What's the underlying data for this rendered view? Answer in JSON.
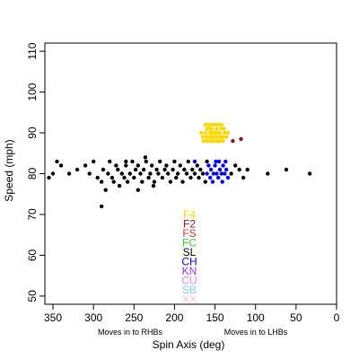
{
  "chart_data": {
    "type": "scatter",
    "xlabel": "Spin Axis (deg)",
    "ylabel": "Speed (mph)",
    "xlim": [
      360,
      0
    ],
    "ylim": [
      48,
      112
    ],
    "x_ticks": [
      350,
      300,
      250,
      200,
      150,
      100,
      50,
      0
    ],
    "y_ticks": [
      50,
      60,
      70,
      80,
      90,
      100,
      110
    ],
    "x_tick_labels": [
      "350",
      "300",
      "250",
      "200",
      "150",
      "100",
      "50",
      "0"
    ],
    "y_tick_labels": [
      "50",
      "60",
      "70",
      "80",
      "90",
      "100",
      "110"
    ],
    "x_sublabels": {
      "left": "Moves in to RHBs",
      "right": "Moves in to LHBs"
    },
    "grid": false,
    "legend_position": "center-bottom",
    "legend": [
      {
        "label": "F4",
        "color": "#FFD700"
      },
      {
        "label": "F2",
        "color": "#8B1A1A"
      },
      {
        "label": "FS",
        "color": "#CD3333"
      },
      {
        "label": "FC",
        "color": "#32CD32"
      },
      {
        "label": "SL",
        "color": "#000000"
      },
      {
        "label": "CH",
        "color": "#0000FF"
      },
      {
        "label": "KN",
        "color": "#9B30FF"
      },
      {
        "label": "CU",
        "color": "#EE82EE"
      },
      {
        "label": "SB",
        "color": "#87CEEB"
      },
      {
        "label": "XX",
        "color": "#FFC0CB"
      }
    ],
    "series": [
      {
        "name": "F4",
        "color": "#FFD700",
        "points": [
          [
            162,
            90
          ],
          [
            160,
            91
          ],
          [
            158,
            89
          ],
          [
            156,
            90
          ],
          [
            154,
            91
          ],
          [
            152,
            89
          ],
          [
            150,
            90
          ],
          [
            148,
            91
          ],
          [
            146,
            89
          ],
          [
            144,
            90
          ],
          [
            142,
            91
          ],
          [
            140,
            89
          ],
          [
            165,
            89
          ],
          [
            167,
            90
          ],
          [
            164,
            88
          ],
          [
            160,
            88
          ],
          [
            156,
            88
          ],
          [
            152,
            88
          ],
          [
            148,
            88
          ],
          [
            144,
            88
          ],
          [
            140,
            88
          ],
          [
            138,
            90
          ],
          [
            136,
            89
          ],
          [
            134,
            90
          ],
          [
            158,
            92
          ],
          [
            154,
            92
          ],
          [
            150,
            92
          ],
          [
            146,
            92
          ],
          [
            142,
            92
          ],
          [
            162,
            92
          ],
          [
            150,
            89
          ],
          [
            153,
            90
          ],
          [
            157,
            91
          ],
          [
            145,
            90
          ],
          [
            149,
            90
          ],
          [
            161,
            89
          ],
          [
            139,
            91
          ],
          [
            143,
            89
          ],
          [
            147,
            88
          ],
          [
            155,
            89
          ]
        ]
      },
      {
        "name": "F2",
        "color": "#8B1A1A",
        "points": [
          [
            118,
            88.5
          ],
          [
            128,
            88
          ]
        ]
      },
      {
        "name": "CH",
        "color": "#0000FF",
        "points": [
          [
            175,
            83
          ],
          [
            155,
            81
          ],
          [
            152,
            80
          ],
          [
            150,
            82
          ],
          [
            148,
            80
          ],
          [
            146,
            79
          ],
          [
            144,
            81
          ],
          [
            142,
            80
          ],
          [
            140,
            82
          ],
          [
            138,
            80
          ],
          [
            136,
            81
          ],
          [
            134,
            79
          ],
          [
            156,
            79
          ],
          [
            158,
            82
          ],
          [
            160,
            80
          ],
          [
            149,
            83
          ],
          [
            145,
            83
          ],
          [
            141,
            78
          ],
          [
            137,
            83
          ],
          [
            153,
            78
          ]
        ]
      },
      {
        "name": "SL",
        "color": "#000000",
        "points": [
          [
            355,
            79
          ],
          [
            350,
            80
          ],
          [
            345,
            83
          ],
          [
            340,
            82
          ],
          [
            330,
            80
          ],
          [
            320,
            81
          ],
          [
            310,
            82
          ],
          [
            305,
            80
          ],
          [
            300,
            83
          ],
          [
            295,
            79
          ],
          [
            290,
            78
          ],
          [
            288,
            81
          ],
          [
            285,
            76
          ],
          [
            282,
            80
          ],
          [
            280,
            83
          ],
          [
            277,
            79
          ],
          [
            275,
            78
          ],
          [
            272,
            82
          ],
          [
            270,
            81
          ],
          [
            268,
            77
          ],
          [
            265,
            80
          ],
          [
            262,
            79
          ],
          [
            260,
            82
          ],
          [
            258,
            78
          ],
          [
            255,
            80
          ],
          [
            252,
            83
          ],
          [
            250,
            79
          ],
          [
            248,
            81
          ],
          [
            245,
            82
          ],
          [
            242,
            80
          ],
          [
            240,
            78
          ],
          [
            238,
            81
          ],
          [
            235,
            83
          ],
          [
            232,
            79
          ],
          [
            230,
            80
          ],
          [
            228,
            82
          ],
          [
            225,
            78
          ],
          [
            222,
            81
          ],
          [
            220,
            80
          ],
          [
            218,
            83
          ],
          [
            215,
            79
          ],
          [
            212,
            81
          ],
          [
            210,
            82
          ],
          [
            208,
            80
          ],
          [
            205,
            78
          ],
          [
            202,
            81
          ],
          [
            200,
            83
          ],
          [
            198,
            79
          ],
          [
            196,
            80
          ],
          [
            193,
            82
          ],
          [
            190,
            78
          ],
          [
            188,
            81
          ],
          [
            185,
            80
          ],
          [
            183,
            83
          ],
          [
            180,
            79
          ],
          [
            178,
            81
          ],
          [
            175,
            80
          ],
          [
            172,
            82
          ],
          [
            170,
            79
          ],
          [
            168,
            81
          ],
          [
            165,
            80
          ],
          [
            162,
            78
          ],
          [
            160,
            83
          ],
          [
            130,
            80
          ],
          [
            125,
            82
          ],
          [
            120,
            81
          ],
          [
            115,
            79
          ],
          [
            110,
            81
          ],
          [
            85,
            80
          ],
          [
            62,
            81
          ],
          [
            33,
            80
          ],
          [
            290,
            72
          ],
          [
            245,
            76
          ],
          [
            226,
            77
          ],
          [
            260,
            83
          ],
          [
            236,
            84
          ]
        ]
      }
    ]
  }
}
